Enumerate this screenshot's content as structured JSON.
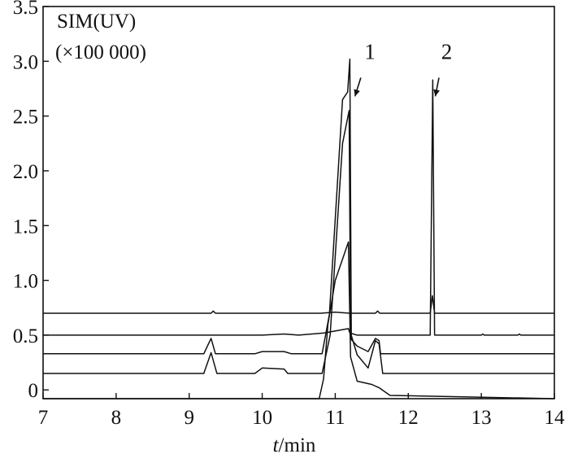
{
  "chart_data": {
    "type": "line",
    "title": "",
    "ylabel_lines": [
      "SIM(UV)",
      "(×100 000)"
    ],
    "xlabel_italic": "t",
    "xlabel_rest": "/min",
    "xlim": [
      7,
      14
    ],
    "ylim": [
      -0.08,
      3.5
    ],
    "x_ticks": [
      7,
      8,
      9,
      10,
      11,
      12,
      13,
      14
    ],
    "y_ticks": [
      0,
      0.5,
      1.0,
      1.5,
      2.0,
      2.5,
      3.0,
      3.5
    ],
    "x_tick_labels": [
      "7",
      "8",
      "9",
      "10",
      "11",
      "12",
      "13",
      "14"
    ],
    "y_tick_labels": [
      "0",
      "0.5",
      "1.0",
      "1.5",
      "2.0",
      "2.5",
      "3.0",
      "3.5"
    ],
    "grid": false,
    "legend": "none",
    "line_color": "#111111",
    "annotations": [
      {
        "text": "1",
        "x": 11.4,
        "y": 3.02,
        "arrow_from": [
          11.35,
          2.85
        ],
        "arrow_to": [
          11.27,
          2.68
        ]
      },
      {
        "text": "2",
        "x": 12.45,
        "y": 3.02,
        "arrow_from": [
          12.42,
          2.85
        ],
        "arrow_to": [
          12.37,
          2.68
        ]
      }
    ],
    "series": [
      {
        "values": [
          [
            7,
            0.7
          ],
          [
            9.3,
            0.7
          ],
          [
            9.33,
            0.72
          ],
          [
            9.36,
            0.7
          ],
          [
            10.8,
            0.7
          ],
          [
            11.0,
            0.71
          ],
          [
            11.2,
            0.7
          ],
          [
            11.55,
            0.7
          ],
          [
            11.58,
            0.72
          ],
          [
            11.61,
            0.7
          ],
          [
            12.3,
            0.7
          ],
          [
            12.33,
            0.86
          ],
          [
            12.36,
            0.7
          ],
          [
            14,
            0.7
          ]
        ]
      },
      {
        "values": [
          [
            7,
            0.5
          ],
          [
            10.0,
            0.5
          ],
          [
            10.3,
            0.51
          ],
          [
            10.5,
            0.5
          ],
          [
            10.85,
            0.52
          ],
          [
            11.18,
            0.56
          ],
          [
            11.2,
            0.52
          ],
          [
            11.3,
            0.5
          ],
          [
            12.3,
            0.5
          ],
          [
            12.335,
            2.83
          ],
          [
            12.36,
            0.5
          ],
          [
            13.0,
            0.5
          ],
          [
            13.02,
            0.51
          ],
          [
            13.04,
            0.5
          ],
          [
            13.5,
            0.5
          ],
          [
            13.52,
            0.51
          ],
          [
            13.54,
            0.5
          ],
          [
            14,
            0.5
          ]
        ]
      },
      {
        "values": [
          [
            7,
            0.33
          ],
          [
            9.2,
            0.33
          ],
          [
            9.3,
            0.47
          ],
          [
            9.36,
            0.33
          ],
          [
            9.5,
            0.33
          ],
          [
            9.9,
            0.33
          ],
          [
            10.0,
            0.35
          ],
          [
            10.3,
            0.35
          ],
          [
            10.4,
            0.33
          ],
          [
            10.82,
            0.33
          ],
          [
            10.92,
            0.69
          ],
          [
            11.1,
            2.65
          ],
          [
            11.17,
            2.72
          ],
          [
            11.2,
            3.02
          ],
          [
            11.22,
            0.46
          ],
          [
            11.3,
            0.4
          ],
          [
            11.45,
            0.35
          ],
          [
            11.55,
            0.47
          ],
          [
            11.6,
            0.45
          ],
          [
            11.62,
            0.33
          ],
          [
            12.0,
            0.33
          ],
          [
            14,
            0.33
          ]
        ]
      },
      {
        "values": [
          [
            7,
            0.15
          ],
          [
            9.2,
            0.15
          ],
          [
            9.3,
            0.34
          ],
          [
            9.38,
            0.15
          ],
          [
            9.5,
            0.15
          ],
          [
            9.9,
            0.15
          ],
          [
            10.0,
            0.2
          ],
          [
            10.3,
            0.19
          ],
          [
            10.35,
            0.15
          ],
          [
            10.82,
            0.15
          ],
          [
            10.93,
            0.5
          ],
          [
            11.1,
            2.25
          ],
          [
            11.19,
            2.55
          ],
          [
            11.21,
            0.52
          ],
          [
            11.3,
            0.32
          ],
          [
            11.45,
            0.2
          ],
          [
            11.55,
            0.45
          ],
          [
            11.6,
            0.42
          ],
          [
            11.65,
            0.15
          ],
          [
            12.0,
            0.15
          ],
          [
            14,
            0.15
          ]
        ]
      },
      {
        "values": [
          [
            7,
            -0.08
          ],
          [
            10.78,
            -0.08
          ],
          [
            10.84,
            0.1
          ],
          [
            10.9,
            0.6
          ],
          [
            11.0,
            1.0
          ],
          [
            11.18,
            1.35
          ],
          [
            11.21,
            0.3
          ],
          [
            11.3,
            0.08
          ],
          [
            11.5,
            0.05
          ],
          [
            11.6,
            0.02
          ],
          [
            11.75,
            -0.05
          ],
          [
            14,
            -0.08
          ]
        ]
      }
    ]
  }
}
